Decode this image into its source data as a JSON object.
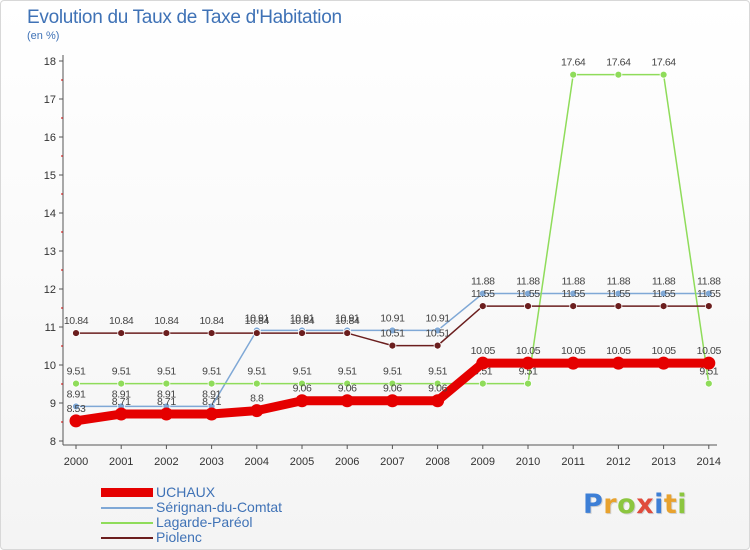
{
  "header": {
    "title": "Evolution du Taux de Taxe d'Habitation",
    "unit": "(en %)"
  },
  "logo": {
    "text": "Proxiti",
    "letter_colors": [
      "#3d7fd6",
      "#e8a22e",
      "#8cc63f",
      "#e04b3c",
      "#3d7fd6",
      "#e8a22e",
      "#8cc63f"
    ]
  },
  "chart_data": {
    "type": "line",
    "title": "Evolution du Taux de Taxe d'Habitation",
    "ylabel": "(en %)",
    "xlabel": "",
    "x": [
      "2000",
      "2001",
      "2002",
      "2003",
      "2004",
      "2005",
      "2006",
      "2007",
      "2008",
      "2009",
      "2010",
      "2011",
      "2012",
      "2013",
      "2014"
    ],
    "ylim": [
      8,
      18
    ],
    "yticks": [
      "8",
      "9",
      "10",
      "11",
      "12",
      "13",
      "14",
      "15",
      "16",
      "17",
      "18"
    ],
    "grid": false,
    "legend_position": "bottom-left",
    "series": [
      {
        "name": "UCHAUX",
        "color": "#e50000",
        "emphasis": true,
        "values": [
          8.53,
          8.71,
          8.71,
          8.71,
          8.8,
          9.06,
          9.06,
          9.06,
          9.06,
          10.05,
          10.05,
          10.05,
          10.05,
          10.05,
          10.05
        ],
        "labels": [
          "8.53",
          "8.71",
          "8.71",
          "8.71",
          "8.8",
          "9.06",
          "9.06",
          "9.06",
          "9.06",
          "10.05",
          "10.05",
          "10.05",
          "10.05",
          "10.05",
          "10.05"
        ]
      },
      {
        "name": "Sérignan-du-Comtat",
        "color": "#7fa8d6",
        "values": [
          8.91,
          8.91,
          8.91,
          8.91,
          10.91,
          10.91,
          10.91,
          10.91,
          10.91,
          11.88,
          11.88,
          11.88,
          11.88,
          11.88,
          11.88
        ],
        "labels": [
          "8.91",
          "8.91",
          "8.91",
          "8.91",
          "10.91",
          "10.91",
          "10.91",
          "10.91",
          "10.91",
          "11.88",
          "11.88",
          "11.88",
          "11.88",
          "11.88",
          "11.88"
        ]
      },
      {
        "name": "Lagarde-Paréol",
        "color": "#8fdc5a",
        "values": [
          9.51,
          9.51,
          9.51,
          9.51,
          9.51,
          9.51,
          9.51,
          9.51,
          9.51,
          9.51,
          9.51,
          17.64,
          17.64,
          17.64,
          9.51
        ],
        "labels": [
          "9.51",
          "9.51",
          "9.51",
          "9.51",
          "9.51",
          "9.51",
          "9.51",
          "9.51",
          "9.51",
          "9.51",
          "9.51",
          "17.64",
          "17.64",
          "17.64",
          "9.51"
        ]
      },
      {
        "name": "Piolenc",
        "color": "#6b1e1e",
        "values": [
          10.84,
          10.84,
          10.84,
          10.84,
          10.84,
          10.84,
          10.84,
          10.51,
          10.51,
          11.55,
          11.55,
          11.55,
          11.55,
          11.55,
          11.55
        ],
        "labels": [
          "10.84",
          "10.84",
          "10.84",
          "10.84",
          "10.84",
          "10.84",
          "10.84",
          "10.51",
          "10.51",
          "11.55",
          "11.55",
          "11.55",
          "11.55",
          "11.55",
          "11.55"
        ]
      }
    ]
  }
}
